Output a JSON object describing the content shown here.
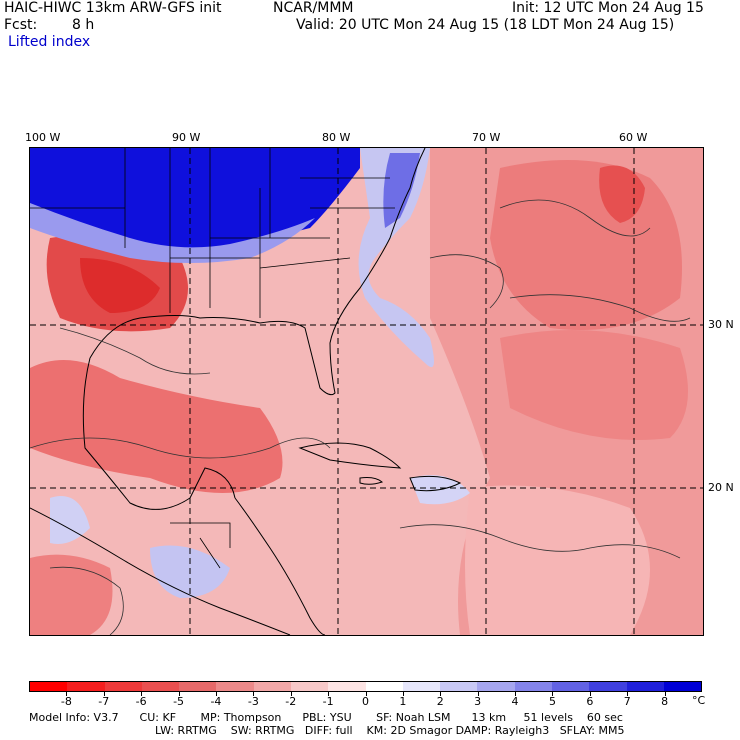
{
  "header": {
    "title_left": "HAIC-HIWC 13km ARW-GFS init",
    "org": "NCAR/MMM",
    "init": "Init: 12 UTC Mon 24 Aug 15",
    "fcst_label": "Fcst:",
    "fcst_value": "8 h",
    "valid": "Valid: 20 UTC Mon 24 Aug 15 (18 LDT Mon 24 Aug 15)",
    "field": "Lifted index"
  },
  "map": {
    "lon_labels": [
      "100 W",
      "90 W",
      "80 W",
      "70 W",
      "60 W"
    ],
    "lat_labels": [
      "30 N",
      "20 N"
    ],
    "colors": {
      "cold_deep": "#0a0ad8",
      "cold_mid": "#8888ee",
      "cold_light": "#c8c8f4",
      "neutral": "#fbe6e6",
      "warm_light": "#f5b4b4",
      "warm_mid": "#ee7070",
      "warm_deep": "#e22020",
      "contour": "#222222"
    }
  },
  "colorbar": {
    "ticks": [
      "-8",
      "-7",
      "-6",
      "-5",
      "-4",
      "-3",
      "-2",
      "-1",
      "0",
      "1",
      "2",
      "3",
      "4",
      "5",
      "6",
      "7",
      "8"
    ],
    "unit": "°C",
    "colors": [
      "#ff0000",
      "#f51e1e",
      "#ee3a3a",
      "#ea5050",
      "#e66a6a",
      "#ec8a8a",
      "#f2a8a8",
      "#f7c8c8",
      "#fde4e4",
      "#ffffff",
      "#e6e6fb",
      "#c8c8f5",
      "#a6a6ef",
      "#8484ea",
      "#6262e4",
      "#4040df",
      "#2020da",
      "#0000d6"
    ]
  },
  "footer": {
    "line1": "Model Info: V3.7      CU: KF       MP: Thompson      PBL: YSU       SF: Noah LSM      13 km     51 levels    60 sec",
    "line2": "LW: RRTMG    SW: RRTMG   DIFF: full    KM: 2D Smagor DAMP: Rayleigh3   SFLAY: MM5"
  }
}
